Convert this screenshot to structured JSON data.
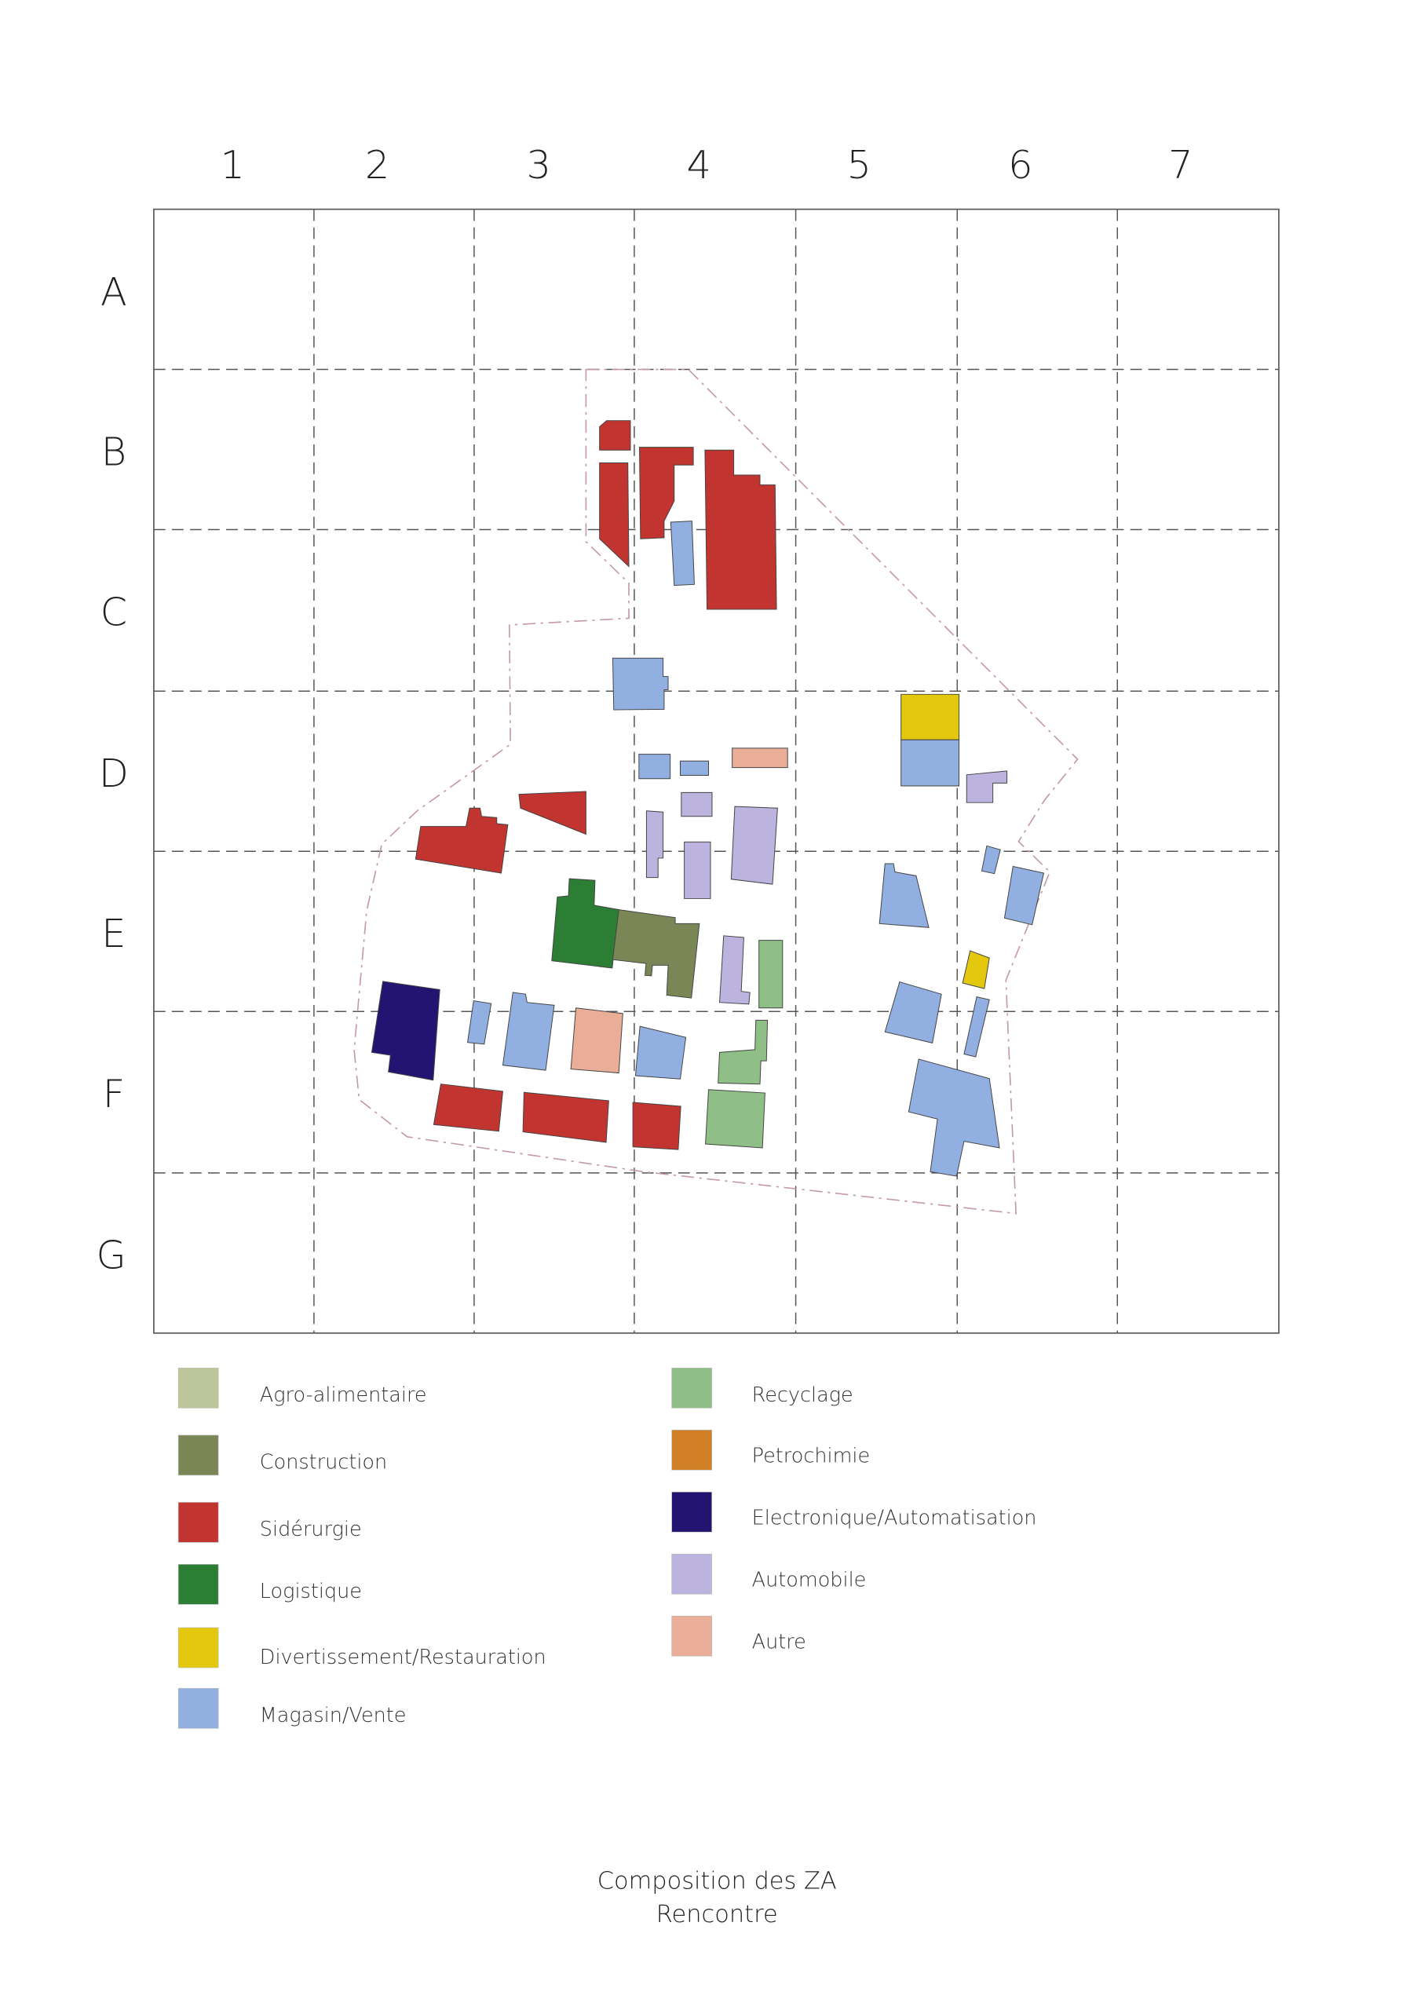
{
  "columns": [
    "1",
    "2",
    "3",
    "4",
    "5",
    "6",
    "7"
  ],
  "rows": [
    "A",
    "B",
    "C",
    "D",
    "E",
    "F",
    "G"
  ],
  "legend": [
    {
      "label": "Agro-alimentaire",
      "color": "#bcc69a"
    },
    {
      "label": "Construction",
      "color": "#7a8656"
    },
    {
      "label": "Sidérurgie",
      "color": "#c1342f"
    },
    {
      "label": "Logistique",
      "color": "#2d7e35"
    },
    {
      "label": "Divertissement/Restauration",
      "color": "#e4c80e"
    },
    {
      "label": "Magasin/Vente",
      "color": "#91afe0"
    },
    {
      "label": "Recyclage",
      "color": "#8fbf87"
    },
    {
      "label": "Petrochimie",
      "color": "#d07f24"
    },
    {
      "label": "Electronique/Automatisation",
      "color": "#241472"
    },
    {
      "label": "Automobile",
      "color": "#bcb3de"
    },
    {
      "label": "Autre",
      "color": "#e9ad98"
    }
  ],
  "title": {
    "line1": "Composition des ZA",
    "line2": "Rencontre"
  }
}
